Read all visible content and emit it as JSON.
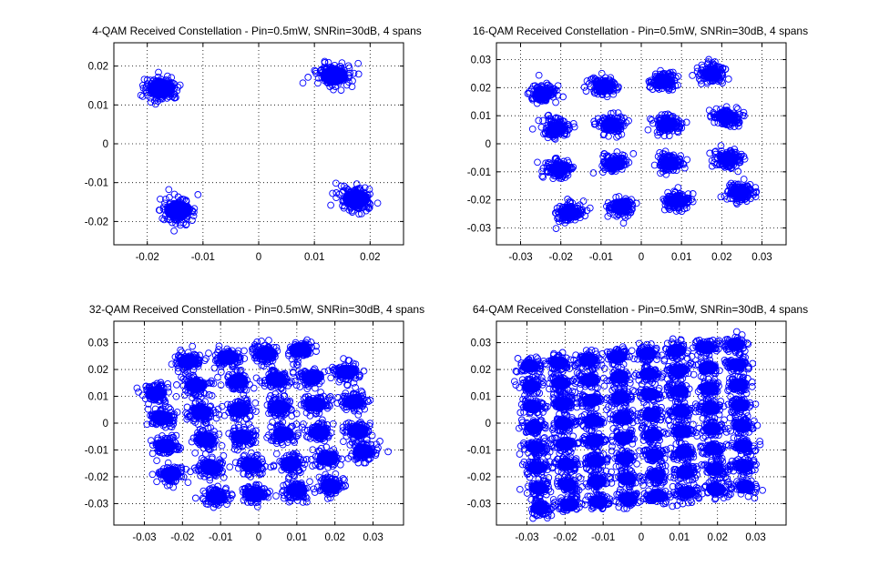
{
  "figure": {
    "background": "#ffffff",
    "marker_color": "#0000ff",
    "marker": "open-circle"
  },
  "chart_data": [
    {
      "type": "scatter",
      "title": "4-QAM Received Constellation - Pin=0.5mW, SNRin=30dB, 4 spans",
      "xlim": [
        -0.026,
        0.026
      ],
      "ylim": [
        -0.026,
        0.026
      ],
      "xticks": [
        -0.02,
        -0.01,
        0,
        0.01,
        0.02
      ],
      "xticklabels": [
        "-0.02",
        "-0.01",
        "0",
        "0.01",
        "0.02"
      ],
      "yticks": [
        -0.02,
        -0.01,
        0,
        0.01,
        0.02
      ],
      "yticklabels": [
        "-0.02",
        "-0.01",
        "0",
        "0.01",
        "0.02"
      ],
      "grid": true,
      "cluster_std": 0.0016,
      "cluster_centers": [
        [
          -0.0175,
          0.0142
        ],
        [
          0.0135,
          0.0175
        ],
        [
          -0.0145,
          -0.0172
        ],
        [
          0.0175,
          -0.0142
        ]
      ]
    },
    {
      "type": "scatter",
      "title": "16-QAM Received Constellation - Pin=0.5mW, SNRin=30dB, 4 spans",
      "xlim": [
        -0.036,
        0.036
      ],
      "ylim": [
        -0.036,
        0.036
      ],
      "xticks": [
        -0.03,
        -0.02,
        -0.01,
        0,
        0.01,
        0.02,
        0.03
      ],
      "xticklabels": [
        "-0.03",
        "-0.02",
        "-0.01",
        "0",
        "0.01",
        "0.02",
        "0.03"
      ],
      "yticks": [
        -0.03,
        -0.02,
        -0.01,
        0,
        0.01,
        0.02,
        0.03
      ],
      "yticklabels": [
        "-0.03",
        "-0.02",
        "-0.01",
        "0",
        "0.01",
        "0.02",
        "0.03"
      ],
      "grid": true,
      "cluster_std": 0.0016,
      "cluster_centers": [
        [
          -0.0245,
          0.018
        ],
        [
          -0.0095,
          0.0205
        ],
        [
          0.0055,
          0.0225
        ],
        [
          0.0175,
          0.025
        ],
        [
          -0.021,
          0.0055
        ],
        [
          -0.0075,
          0.007
        ],
        [
          0.0065,
          0.007
        ],
        [
          0.021,
          0.0095
        ],
        [
          -0.0205,
          -0.009
        ],
        [
          -0.0065,
          -0.007
        ],
        [
          0.007,
          -0.007
        ],
        [
          0.0215,
          -0.0055
        ],
        [
          -0.018,
          -0.0245
        ],
        [
          -0.005,
          -0.0225
        ],
        [
          0.009,
          -0.0205
        ],
        [
          0.0245,
          -0.0175
        ]
      ]
    },
    {
      "type": "scatter",
      "title": "32-QAM Received Constellation - Pin=0.5mW, SNRin=30dB, 4 spans",
      "xlim": [
        -0.038,
        0.038
      ],
      "ylim": [
        -0.038,
        0.038
      ],
      "xticks": [
        -0.03,
        -0.02,
        -0.01,
        0,
        0.01,
        0.02,
        0.03
      ],
      "xticklabels": [
        "-0.03",
        "-0.02",
        "-0.01",
        "0",
        "0.01",
        "0.02",
        "0.03"
      ],
      "yticks": [
        -0.03,
        -0.02,
        -0.01,
        0,
        0.01,
        0.02,
        0.03
      ],
      "yticklabels": [
        "-0.03",
        "-0.02",
        "-0.01",
        "0",
        "0.01",
        "0.02",
        "0.03"
      ],
      "grid": true,
      "cluster_std": 0.0018,
      "cluster_centers": [
        [
          -0.0185,
          0.023
        ],
        [
          -0.008,
          0.0245
        ],
        [
          0.002,
          0.026
        ],
        [
          0.011,
          0.0275
        ],
        [
          -0.027,
          0.011
        ],
        [
          -0.0165,
          0.014
        ],
        [
          -0.0055,
          0.0155
        ],
        [
          0.0045,
          0.0165
        ],
        [
          0.014,
          0.017
        ],
        [
          0.023,
          0.019
        ],
        [
          -0.0255,
          0.002
        ],
        [
          -0.015,
          0.004
        ],
        [
          -0.005,
          0.005
        ],
        [
          0.0055,
          0.006
        ],
        [
          0.015,
          0.007
        ],
        [
          0.025,
          0.008
        ],
        [
          -0.0245,
          -0.0085
        ],
        [
          -0.014,
          -0.006
        ],
        [
          -0.0045,
          -0.005
        ],
        [
          0.0065,
          -0.004
        ],
        [
          0.016,
          -0.0035
        ],
        [
          0.026,
          -0.003
        ],
        [
          -0.023,
          -0.019
        ],
        [
          -0.0125,
          -0.0165
        ],
        [
          -0.002,
          -0.0155
        ],
        [
          0.0085,
          -0.015
        ],
        [
          0.018,
          -0.013
        ],
        [
          0.0275,
          -0.0105
        ],
        [
          -0.011,
          -0.0275
        ],
        [
          -0.001,
          -0.0265
        ],
        [
          0.01,
          -0.025
        ],
        [
          0.019,
          -0.0235
        ]
      ]
    },
    {
      "type": "scatter",
      "title": "64-QAM Received Constellation - Pin=0.5mW, SNRin=30dB, 4 spans",
      "xlim": [
        -0.038,
        0.038
      ],
      "ylim": [
        -0.038,
        0.038
      ],
      "xticks": [
        -0.03,
        -0.02,
        -0.01,
        0,
        0.01,
        0.02,
        0.03
      ],
      "xticklabels": [
        "-0.03",
        "-0.02",
        "-0.01",
        "0",
        "0.01",
        "0.02",
        "0.03"
      ],
      "yticks": [
        -0.03,
        -0.02,
        -0.01,
        0,
        0.01,
        0.02,
        0.03
      ],
      "yticklabels": [
        "-0.03",
        "-0.02",
        "-0.01",
        "0",
        "0.01",
        "0.02",
        "0.03"
      ],
      "grid": true,
      "cluster_std": 0.0016,
      "grid_8x8": {
        "x_range": [
          -0.028,
          0.026
        ],
        "y_range": [
          -0.0275,
          0.0255
        ],
        "skew_y_per_x": 0.15,
        "skew_x_per_y": -0.05
      }
    }
  ]
}
